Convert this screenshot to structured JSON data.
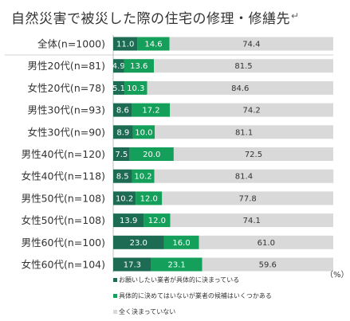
{
  "chart_data": {
    "type": "bar",
    "stacked": true,
    "orientation": "horizontal",
    "title": "自然災害で被災した際の住宅の修理・修繕先",
    "title_suffix_mark": "↵",
    "unit_label": "（%）",
    "xlim": [
      0,
      100
    ],
    "categories": [
      "全体(n=1000)",
      "男性20代(n=81)",
      "女性20代(n=78)",
      "男性30代(n=93)",
      "女性30代(n=90)",
      "男性40代(n=120)",
      "女性40代(n=118)",
      "男性50代(n=108)",
      "女性50代(n=108)",
      "男性60代(n=100)",
      "女性60代(n=104)"
    ],
    "series": [
      {
        "name": "お願いしたい業者が具体的に決まっている",
        "color": "#1d6b53",
        "values": [
          11.0,
          4.9,
          5.1,
          8.6,
          8.9,
          7.5,
          8.5,
          10.2,
          13.9,
          23.0,
          17.3
        ]
      },
      {
        "name": "具体的に決めてはいないが業者の候補はいくつかある",
        "color": "#14a05a",
        "values": [
          14.6,
          13.6,
          10.3,
          17.2,
          10.0,
          20.0,
          10.2,
          12.0,
          12.0,
          16.0,
          23.1
        ]
      },
      {
        "name": "全く決まっていない",
        "color": "#d9d9d9",
        "values": [
          74.4,
          81.5,
          84.6,
          74.2,
          81.1,
          72.5,
          81.4,
          77.8,
          74.1,
          61.0,
          59.6
        ]
      }
    ],
    "labels": [
      [
        "11.0",
        "14.6",
        "74.4"
      ],
      [
        "4.9",
        "13.6",
        "81.5"
      ],
      [
        "5.1",
        "10.3",
        "84.6"
      ],
      [
        "8.6",
        "17.2",
        "74.2"
      ],
      [
        "8.9",
        "10.0",
        "81.1"
      ],
      [
        "7.5",
        "20.0",
        "72.5"
      ],
      [
        "8.5",
        "10.2",
        "81.4"
      ],
      [
        "10.2",
        "12.0",
        "77.8"
      ],
      [
        "13.9",
        "12.0",
        "74.1"
      ],
      [
        "23.0",
        "16.0",
        "61.0"
      ],
      [
        "17.3",
        "23.1",
        "59.6"
      ]
    ],
    "grid": false,
    "legend_position": "bottom"
  }
}
